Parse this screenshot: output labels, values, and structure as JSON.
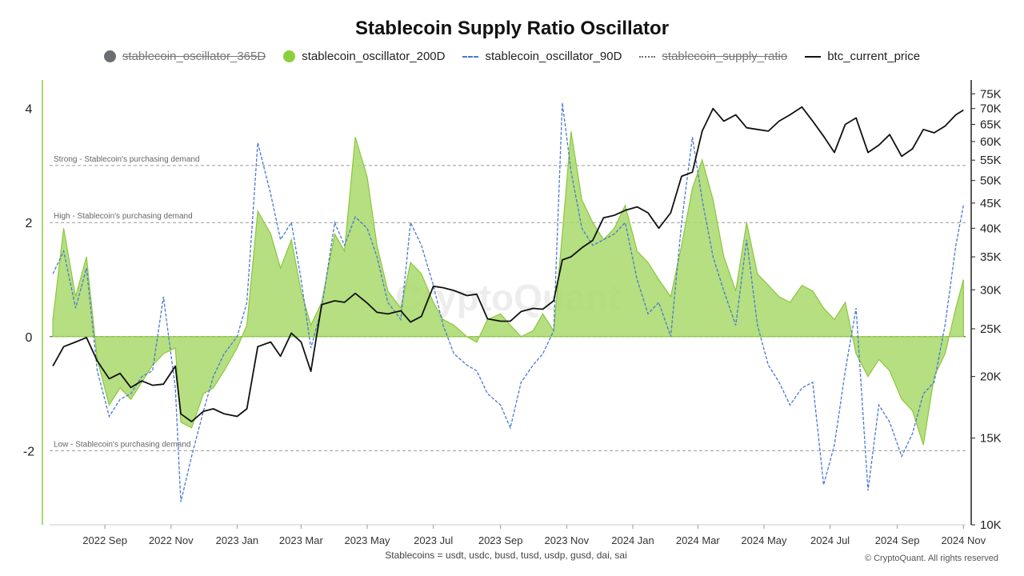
{
  "chart_data": {
    "type": "area",
    "title": "Stablecoin Supply Ratio Oscillator",
    "legend": [
      {
        "name": "stablecoin_oscillator_365D",
        "marker": "dot",
        "color": "#6b6e72",
        "enabled": false
      },
      {
        "name": "stablecoin_oscillator_200D",
        "marker": "dot",
        "color": "#8ccf3c",
        "enabled": true
      },
      {
        "name": "stablecoin_oscillator_90D",
        "marker": "dashed-line",
        "color": "#4a78d4",
        "enabled": true
      },
      {
        "name": "stablecoin_supply_ratio",
        "marker": "dashdot-line",
        "color": "#6b6e72",
        "enabled": false
      },
      {
        "name": "btc_current_price",
        "marker": "line",
        "color": "#111111",
        "enabled": true
      }
    ],
    "x_ticks": [
      "2022 Sep",
      "2022 Nov",
      "2023 Jan",
      "2023 Mar",
      "2023 May",
      "2023 Jul",
      "2023 Sep",
      "2023 Nov",
      "2024 Jan",
      "2024 Mar",
      "2024 May",
      "2024 Jul",
      "2024 Sep",
      "2024 Nov"
    ],
    "x_range": [
      "2022-07-12",
      "2024-11-03"
    ],
    "y_left": {
      "ticks": [
        4,
        2,
        0,
        -2
      ],
      "range": [
        -3.3,
        4.5
      ]
    },
    "y_right": {
      "ticks": [
        75000,
        70000,
        65000,
        60000,
        55000,
        50000,
        45000,
        40000,
        35000,
        30000,
        25000,
        20000,
        15000,
        10000
      ],
      "tick_labels": [
        "75K",
        "70K",
        "65K",
        "60K",
        "55K",
        "50K",
        "45K",
        "40K",
        "35K",
        "30K",
        "25K",
        "20K",
        "15K",
        "10K"
      ],
      "scale": "log",
      "range": [
        10000,
        80000
      ]
    },
    "reference_lines": [
      {
        "y": 3.0,
        "label": "Strong - Stablecoin's purchasing demand"
      },
      {
        "y": 2.0,
        "label": "High - Stablecoin's purchasing demand"
      },
      {
        "y": 0,
        "label": ""
      },
      {
        "y": -2.0,
        "label": "Low - Stablecoin's purchasing demand"
      }
    ],
    "series": [
      {
        "name": "stablecoin_oscillator_200D",
        "style": "area",
        "x": [
          "2022-07-15",
          "2022-07-25",
          "2022-08-05",
          "2022-08-15",
          "2022-08-25",
          "2022-09-05",
          "2022-09-15",
          "2022-09-25",
          "2022-10-05",
          "2022-10-15",
          "2022-10-25",
          "2022-11-05",
          "2022-11-10",
          "2022-11-20",
          "2022-12-01",
          "2022-12-10",
          "2022-12-20",
          "2023-01-01",
          "2023-01-10",
          "2023-01-20",
          "2023-02-01",
          "2023-02-10",
          "2023-02-20",
          "2023-03-01",
          "2023-03-10",
          "2023-03-20",
          "2023-04-01",
          "2023-04-10",
          "2023-04-20",
          "2023-05-01",
          "2023-05-10",
          "2023-05-20",
          "2023-06-01",
          "2023-06-10",
          "2023-06-20",
          "2023-07-01",
          "2023-07-10",
          "2023-07-20",
          "2023-08-01",
          "2023-08-10",
          "2023-08-20",
          "2023-09-01",
          "2023-09-10",
          "2023-09-20",
          "2023-10-01",
          "2023-10-10",
          "2023-10-20",
          "2023-10-28",
          "2023-11-05",
          "2023-11-15",
          "2023-11-25",
          "2023-12-05",
          "2023-12-15",
          "2023-12-25",
          "2024-01-05",
          "2024-01-15",
          "2024-01-25",
          "2024-02-05",
          "2024-02-15",
          "2024-02-25",
          "2024-03-05",
          "2024-03-15",
          "2024-03-25",
          "2024-04-05",
          "2024-04-15",
          "2024-04-25",
          "2024-05-05",
          "2024-05-15",
          "2024-05-25",
          "2024-06-05",
          "2024-06-15",
          "2024-06-25",
          "2024-07-05",
          "2024-07-15",
          "2024-07-25",
          "2024-08-05",
          "2024-08-15",
          "2024-08-25",
          "2024-09-05",
          "2024-09-15",
          "2024-09-25",
          "2024-10-05",
          "2024-10-15",
          "2024-10-25",
          "2024-11-01"
        ],
        "values": [
          0.3,
          1.9,
          0.7,
          1.4,
          -0.4,
          -1.2,
          -0.9,
          -1.1,
          -0.8,
          -0.5,
          -0.3,
          -0.2,
          -1.5,
          -1.6,
          -1.0,
          -0.9,
          -0.6,
          -0.2,
          0.2,
          2.2,
          1.8,
          1.2,
          1.7,
          0.8,
          0.2,
          0.6,
          1.8,
          1.5,
          3.5,
          2.8,
          1.6,
          0.8,
          0.5,
          1.3,
          1.1,
          0.6,
          0.3,
          0.2,
          0.0,
          -0.1,
          0.3,
          0.4,
          0.2,
          0.0,
          0.1,
          0.4,
          0.1,
          1.8,
          3.6,
          2.4,
          2.0,
          1.7,
          1.9,
          2.3,
          1.5,
          1.3,
          1.0,
          0.7,
          1.6,
          2.6,
          3.1,
          2.4,
          1.4,
          0.8,
          2.0,
          1.1,
          0.9,
          0.7,
          0.6,
          0.9,
          0.8,
          0.5,
          0.3,
          0.6,
          -0.3,
          -0.7,
          -0.4,
          -0.6,
          -1.1,
          -1.3,
          -1.9,
          -0.7,
          -0.3,
          0.5,
          1.0
        ]
      },
      {
        "name": "stablecoin_oscillator_90D",
        "style": "dashed",
        "x": [
          "2022-07-15",
          "2022-07-25",
          "2022-08-05",
          "2022-08-15",
          "2022-08-25",
          "2022-09-05",
          "2022-09-15",
          "2022-09-25",
          "2022-10-05",
          "2022-10-15",
          "2022-10-25",
          "2022-11-05",
          "2022-11-10",
          "2022-11-20",
          "2022-12-01",
          "2022-12-10",
          "2022-12-20",
          "2023-01-01",
          "2023-01-10",
          "2023-01-20",
          "2023-02-01",
          "2023-02-10",
          "2023-02-20",
          "2023-03-01",
          "2023-03-10",
          "2023-03-20",
          "2023-04-01",
          "2023-04-10",
          "2023-04-20",
          "2023-05-01",
          "2023-05-10",
          "2023-05-20",
          "2023-06-01",
          "2023-06-10",
          "2023-06-20",
          "2023-07-01",
          "2023-07-10",
          "2023-07-20",
          "2023-08-01",
          "2023-08-10",
          "2023-08-20",
          "2023-09-01",
          "2023-09-10",
          "2023-09-20",
          "2023-10-01",
          "2023-10-10",
          "2023-10-20",
          "2023-10-28",
          "2023-11-05",
          "2023-11-15",
          "2023-11-25",
          "2023-12-05",
          "2023-12-15",
          "2023-12-25",
          "2024-01-05",
          "2024-01-15",
          "2024-01-25",
          "2024-02-05",
          "2024-02-15",
          "2024-02-25",
          "2024-03-05",
          "2024-03-15",
          "2024-03-25",
          "2024-04-05",
          "2024-04-15",
          "2024-04-25",
          "2024-05-05",
          "2024-05-15",
          "2024-05-25",
          "2024-06-05",
          "2024-06-15",
          "2024-06-25",
          "2024-07-05",
          "2024-07-15",
          "2024-07-25",
          "2024-08-05",
          "2024-08-15",
          "2024-08-25",
          "2024-09-05",
          "2024-09-15",
          "2024-09-25",
          "2024-10-05",
          "2024-10-15",
          "2024-10-25",
          "2024-11-01"
        ],
        "values": [
          1.1,
          1.5,
          0.5,
          1.2,
          -0.6,
          -1.4,
          -1.1,
          -1.0,
          -0.7,
          -0.6,
          0.7,
          -0.9,
          -2.9,
          -2.1,
          -1.3,
          -0.7,
          -0.3,
          0.0,
          0.6,
          3.4,
          2.5,
          1.7,
          2.0,
          1.0,
          -0.2,
          0.5,
          2.0,
          1.6,
          2.1,
          1.9,
          1.4,
          0.6,
          0.3,
          2.0,
          1.6,
          0.9,
          0.2,
          -0.3,
          -0.5,
          -0.6,
          -1.0,
          -1.2,
          -1.6,
          -0.8,
          -0.5,
          -0.3,
          0.1,
          4.1,
          2.9,
          1.9,
          1.6,
          1.7,
          1.8,
          2.0,
          1.0,
          0.4,
          0.6,
          0.0,
          2.0,
          3.5,
          2.4,
          1.4,
          0.8,
          0.2,
          1.7,
          0.2,
          -0.5,
          -0.8,
          -1.2,
          -0.9,
          -0.8,
          -2.6,
          -1.9,
          -0.6,
          0.5,
          -2.7,
          -1.2,
          -1.5,
          -2.1,
          -1.7,
          -1.0,
          -0.8,
          0.2,
          1.6,
          2.3
        ]
      },
      {
        "name": "btc_current_price",
        "style": "line",
        "axis": "right",
        "x": [
          "2022-07-15",
          "2022-07-25",
          "2022-08-05",
          "2022-08-15",
          "2022-08-25",
          "2022-09-05",
          "2022-09-15",
          "2022-09-25",
          "2022-10-05",
          "2022-10-15",
          "2022-10-25",
          "2022-11-05",
          "2022-11-10",
          "2022-11-20",
          "2022-12-01",
          "2022-12-10",
          "2022-12-20",
          "2023-01-01",
          "2023-01-10",
          "2023-01-20",
          "2023-02-01",
          "2023-02-10",
          "2023-02-20",
          "2023-03-01",
          "2023-03-10",
          "2023-03-20",
          "2023-04-01",
          "2023-04-10",
          "2023-04-20",
          "2023-05-01",
          "2023-05-10",
          "2023-05-20",
          "2023-06-01",
          "2023-06-10",
          "2023-06-20",
          "2023-07-01",
          "2023-07-10",
          "2023-07-20",
          "2023-08-01",
          "2023-08-10",
          "2023-08-20",
          "2023-09-01",
          "2023-09-10",
          "2023-09-20",
          "2023-10-01",
          "2023-10-10",
          "2023-10-20",
          "2023-10-28",
          "2023-11-05",
          "2023-11-15",
          "2023-11-25",
          "2023-12-05",
          "2023-12-15",
          "2023-12-25",
          "2024-01-05",
          "2024-01-15",
          "2024-01-25",
          "2024-02-05",
          "2024-02-15",
          "2024-02-25",
          "2024-03-05",
          "2024-03-15",
          "2024-03-25",
          "2024-04-05",
          "2024-04-15",
          "2024-04-25",
          "2024-05-05",
          "2024-05-15",
          "2024-05-25",
          "2024-06-05",
          "2024-06-15",
          "2024-06-25",
          "2024-07-05",
          "2024-07-15",
          "2024-07-25",
          "2024-08-05",
          "2024-08-15",
          "2024-08-25",
          "2024-09-05",
          "2024-09-15",
          "2024-09-25",
          "2024-10-05",
          "2024-10-15",
          "2024-10-25",
          "2024-11-01"
        ],
        "values": [
          21000,
          23000,
          23500,
          24000,
          21500,
          19800,
          20300,
          19000,
          19600,
          19200,
          19300,
          21000,
          16800,
          16200,
          17000,
          17200,
          16800,
          16600,
          17200,
          23000,
          23500,
          22000,
          24500,
          23500,
          20500,
          28000,
          28500,
          28300,
          29500,
          28200,
          27000,
          26800,
          27200,
          25800,
          26500,
          30500,
          30300,
          29900,
          29200,
          29400,
          26200,
          25900,
          25900,
          27100,
          27500,
          27400,
          28500,
          34500,
          35000,
          36500,
          37800,
          42000,
          42500,
          43500,
          44200,
          43000,
          40000,
          43000,
          51000,
          52000,
          63000,
          70000,
          66000,
          68000,
          64000,
          63500,
          63000,
          66000,
          68000,
          70500,
          66000,
          61500,
          57000,
          65000,
          67000,
          57000,
          59000,
          62000,
          56000,
          58000,
          63500,
          62500,
          64500,
          68000,
          69500
        ]
      }
    ],
    "watermark": "CryptoQuant",
    "footnote": "Stablecoins = usdt, usdc, busd, tusd, usdp, gusd, dai, sai",
    "copyright": "© CryptoQuant. All rights reserved"
  }
}
